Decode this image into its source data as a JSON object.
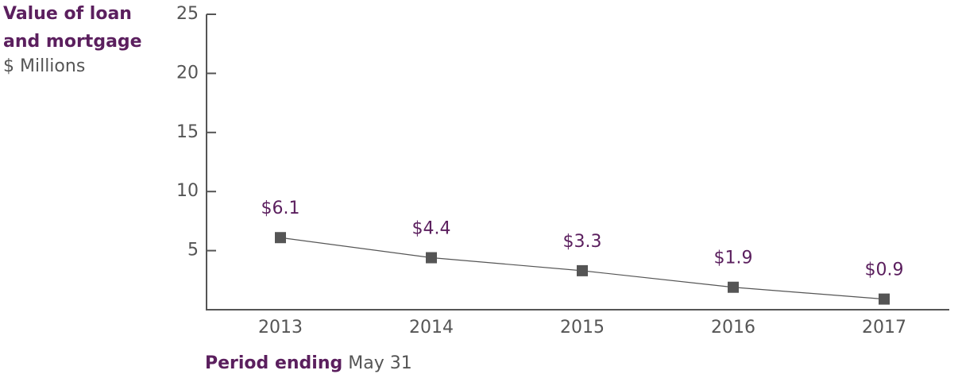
{
  "chart_data": {
    "type": "line",
    "ylabel": [
      "Value of loan",
      "and mortgage"
    ],
    "yunit": "$ Millions",
    "xlabel": "Period ending",
    "xlabel_note": "May 31",
    "categories": [
      "2013",
      "2014",
      "2015",
      "2016",
      "2017"
    ],
    "series": [
      {
        "name": "Value of loan and mortgage",
        "color": "#555555",
        "values": [
          6.1,
          4.4,
          3.3,
          1.9,
          0.9
        ],
        "value_labels": [
          "$6.1",
          "$4.4",
          "$3.3",
          "$1.9",
          "$0.9"
        ]
      }
    ],
    "ylim": [
      0,
      25
    ],
    "yticks": [
      5,
      10,
      15,
      20,
      25
    ],
    "grid": false
  }
}
